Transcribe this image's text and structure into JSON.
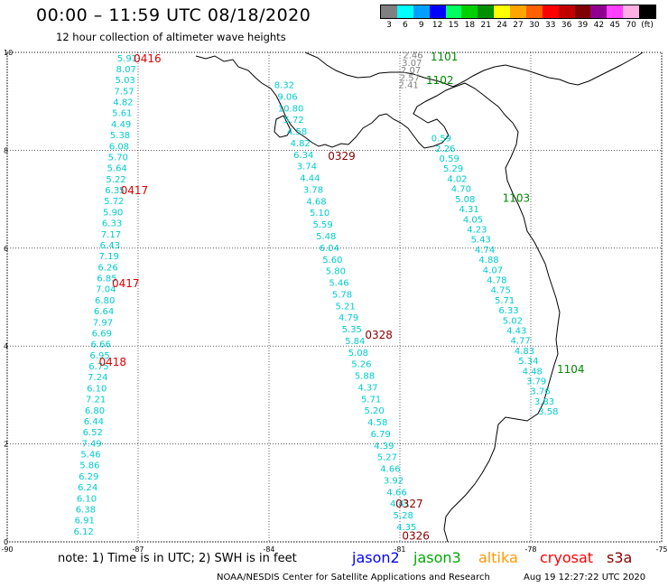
{
  "title": "00:00 – 11:59 UTC 08/18/2020",
  "subtitle": "12 hour collection of altimeter wave heights",
  "legend": {
    "colors": [
      "#808080",
      "#00ffff",
      "#00a0ff",
      "#0000ff",
      "#00ff60",
      "#00d000",
      "#009000",
      "#ffff00",
      "#ffa500",
      "#ff6000",
      "#ff0000",
      "#c00000",
      "#800000",
      "#900090",
      "#ff40ff",
      "#ffb0e0",
      "#000000"
    ],
    "labels": [
      "3",
      "6",
      "9",
      "12",
      "15",
      "18",
      "21",
      "24",
      "27",
      "30",
      "33",
      "36",
      "39",
      "42",
      "45",
      "70",
      "(ft)"
    ]
  },
  "axes": {
    "lon_min": -90,
    "lon_max": -75,
    "lat_min": 0,
    "lat_max": 10,
    "x_ticks": [
      "-90",
      "-87",
      "-84",
      "-81",
      "-78",
      "-75"
    ],
    "x_tick_values": [
      -90,
      -87,
      -84,
      -81,
      -78,
      -75
    ],
    "y_ticks": [
      "0",
      "2",
      "4",
      "6",
      "8",
      "10"
    ],
    "y_tick_values": [
      0,
      2,
      4,
      6,
      8,
      10
    ]
  },
  "tracks": [
    {
      "lon_start": -87.25,
      "lat_start": 9.82,
      "lon_end": -88.25,
      "lat_end": 0.15,
      "color": "#00cccc",
      "values": [
        "5.91",
        "8.07",
        "5.03",
        "7.57",
        "4.82",
        "5.61",
        "4.49",
        "5.38",
        "6.08",
        "5.70",
        "5.64",
        "5.22",
        "6.35",
        "5.72",
        "5.90",
        "6.33",
        "7.17",
        "6.43",
        "7.19",
        "6.26",
        "6.85",
        "7.04",
        "6.80",
        "6.64",
        "7.97",
        "6.69",
        "6.66",
        "6.95",
        "6.75",
        "7.24",
        "6.10",
        "7.21",
        "6.80",
        "6.44",
        "6.52",
        "7.49",
        "5.46",
        "5.86",
        "6.29",
        "6.24",
        "6.10",
        "6.38",
        "6.91",
        "6.12"
      ]
    },
    {
      "lon_start": -83.65,
      "lat_start": 9.27,
      "lon_end": -80.85,
      "lat_end": 0.24,
      "color": "#00cccc",
      "values": [
        "8.32",
        "9.06",
        "10.80",
        "5.72",
        "4.58",
        "4.82",
        "6.34",
        "3.74",
        "4.44",
        "3.78",
        "4.68",
        "5.10",
        "5.59",
        "5.48",
        "6.04",
        "5.60",
        "5.80",
        "5.46",
        "5.78",
        "5.21",
        "4.79",
        "5.35",
        "5.84",
        "5.08",
        "5.26",
        "5.88",
        "4.37",
        "5.71",
        "5.20",
        "4.58",
        "6.79",
        "4.39",
        "5.27",
        "4.66",
        "3.92",
        "4.66",
        "4.41",
        "5.28",
        "4.35"
      ]
    },
    {
      "lon_start": -80.7,
      "lat_start": 9.88,
      "lon_end": -80.8,
      "lat_end": 9.27,
      "color": "#808080",
      "values": [
        "2.46",
        "3.07",
        "2.07",
        "2.57",
        "2.41"
      ]
    },
    {
      "lon_start": -80.05,
      "lat_start": 8.18,
      "lon_end": -77.6,
      "lat_end": 2.6,
      "color": "#00cccc",
      "values": [
        "0.59",
        "2.26",
        "0.59",
        "5.29",
        "4.02",
        "4.70",
        "5.08",
        "4.31",
        "4.05",
        "4.23",
        "5.43",
        "4.74",
        "4.88",
        "4.07",
        "4.78",
        "4.75",
        "5.71",
        "6.33",
        "5.02",
        "4.43",
        "4.77",
        "4.83",
        "5.34",
        "4.48",
        "3.79",
        "3.76",
        "3.83",
        "3.58"
      ]
    }
  ],
  "time_labels": [
    {
      "text": "0416",
      "lon": -87.1,
      "lat": 9.8,
      "color": "#dd0000"
    },
    {
      "text": "0417",
      "lon": -87.4,
      "lat": 7.1,
      "color": "#dd0000"
    },
    {
      "text": "0417",
      "lon": -87.6,
      "lat": 5.2,
      "color": "#dd0000"
    },
    {
      "text": "0418",
      "lon": -87.9,
      "lat": 3.6,
      "color": "#dd0000"
    },
    {
      "text": "0329",
      "lon": -82.65,
      "lat": 7.8,
      "color": "#880000"
    },
    {
      "text": "0328",
      "lon": -81.8,
      "lat": 4.15,
      "color": "#880000"
    },
    {
      "text": "0327",
      "lon": -81.1,
      "lat": 0.7,
      "color": "#880000"
    },
    {
      "text": "0326",
      "lon": -80.95,
      "lat": 0.05,
      "color": "#880000"
    },
    {
      "text": "1101",
      "lon": -80.3,
      "lat": 9.83,
      "color": "#008800"
    },
    {
      "text": "1102",
      "lon": -80.4,
      "lat": 9.35,
      "color": "#008800"
    },
    {
      "text": "1103",
      "lon": -78.65,
      "lat": 6.95,
      "color": "#008800"
    },
    {
      "text": "1104",
      "lon": -77.4,
      "lat": 3.45,
      "color": "#008800"
    }
  ],
  "footer": {
    "note": "note:  1) Time is in UTC;  2) SWH is in feet",
    "satellites": [
      {
        "name": "jason2",
        "color": "#0000ff"
      },
      {
        "name": "jason3",
        "color": "#00aa00"
      },
      {
        "name": "altika",
        "color": "#ff9900"
      },
      {
        "name": "cryosat",
        "color": "#ff0000"
      },
      {
        "name": "s3a",
        "color": "#880000"
      }
    ],
    "credit": "NOAA/NESDIS Center for Satellite Applications and Research",
    "timestamp": "Aug 19 12:27:22 UTC 2020"
  }
}
